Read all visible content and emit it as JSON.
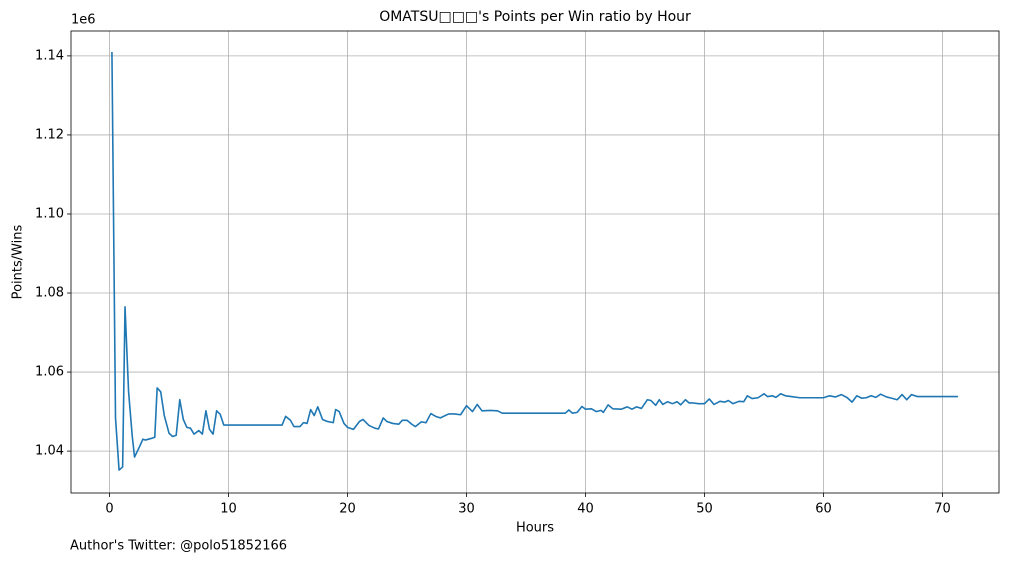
{
  "chart_data": {
    "type": "line",
    "title": "OMATSU□□□'s Points per Win ratio by Hour",
    "xlabel": "Hours",
    "ylabel": "Points/Wins",
    "y_offset_label": "1e6",
    "footer": "Author's Twitter: @polo51852166",
    "x": [
      0.2,
      0.5,
      0.8,
      1.1,
      1.3,
      1.6,
      1.9,
      2.1,
      2.5,
      2.8,
      3.0,
      3.5,
      3.8,
      4.0,
      4.3,
      4.6,
      5.0,
      5.3,
      5.6,
      5.9,
      6.2,
      6.5,
      6.8,
      7.1,
      7.5,
      7.8,
      8.1,
      8.4,
      8.7,
      9.0,
      9.3,
      9.6,
      14.5,
      14.8,
      15.2,
      15.5,
      16.0,
      16.3,
      16.6,
      16.9,
      17.2,
      17.5,
      17.9,
      18.3,
      18.8,
      19.0,
      19.3,
      19.7,
      20.0,
      20.5,
      21.0,
      21.3,
      21.8,
      22.3,
      22.6,
      23.0,
      23.3,
      23.8,
      24.3,
      24.6,
      25.0,
      25.4,
      25.7,
      26.2,
      26.6,
      27.0,
      27.4,
      27.8,
      28.5,
      29.0,
      29.5,
      30.0,
      30.5,
      30.9,
      31.3,
      32.0,
      32.6,
      33.0,
      38.3,
      38.6,
      38.9,
      39.3,
      39.7,
      40.0,
      40.5,
      40.9,
      41.3,
      41.5,
      41.9,
      42.3,
      43.0,
      43.5,
      43.9,
      44.3,
      44.7,
      45.2,
      45.5,
      45.9,
      46.2,
      46.5,
      46.9,
      47.3,
      47.7,
      48.0,
      48.4,
      48.7,
      49.0,
      49.5,
      50.0,
      50.4,
      50.8,
      51.3,
      51.7,
      52.0,
      52.4,
      52.9,
      53.3,
      53.6,
      54.0,
      54.5,
      55.0,
      55.3,
      55.7,
      56.0,
      56.4,
      56.8,
      57.3,
      58.0,
      60.0,
      60.5,
      61.0,
      61.5,
      62.0,
      62.4,
      62.8,
      63.2,
      63.6,
      64.0,
      64.4,
      64.8,
      65.3,
      65.7,
      66.2,
      66.6,
      67.0,
      67.4,
      67.9,
      71.3
    ],
    "series": [
      {
        "name": "Points/Wins",
        "color": "#1f77b4",
        "values": [
          1.141,
          1.0484,
          1.0352,
          1.036,
          1.0765,
          1.055,
          1.044,
          1.0385,
          1.041,
          1.043,
          1.0428,
          1.0432,
          1.0435,
          1.056,
          1.055,
          1.049,
          1.0445,
          1.0437,
          1.044,
          1.053,
          1.048,
          1.046,
          1.0458,
          1.0443,
          1.0452,
          1.0443,
          1.0502,
          1.0455,
          1.0443,
          1.0502,
          1.0493,
          1.0466,
          1.0466,
          1.0488,
          1.0478,
          1.0462,
          1.0462,
          1.0472,
          1.047,
          1.0505,
          1.049,
          1.0512,
          1.048,
          1.0475,
          1.0472,
          1.0505,
          1.05,
          1.047,
          1.046,
          1.0455,
          1.0475,
          1.048,
          1.0465,
          1.0458,
          1.0456,
          1.0484,
          1.0475,
          1.047,
          1.0468,
          1.0478,
          1.0478,
          1.0468,
          1.0462,
          1.0474,
          1.0472,
          1.0495,
          1.0488,
          1.0484,
          1.0494,
          1.0494,
          1.0492,
          1.0515,
          1.05,
          1.0518,
          1.0502,
          1.0503,
          1.0502,
          1.0496,
          1.0496,
          1.0504,
          1.0496,
          1.0498,
          1.0513,
          1.0506,
          1.0507,
          1.05,
          1.0503,
          1.0498,
          1.0517,
          1.0507,
          1.0506,
          1.0512,
          1.0506,
          1.0512,
          1.0508,
          1.053,
          1.0528,
          1.0516,
          1.053,
          1.0518,
          1.0525,
          1.052,
          1.0525,
          1.0517,
          1.053,
          1.0522,
          1.0522,
          1.052,
          1.052,
          1.0532,
          1.0518,
          1.0526,
          1.0524,
          1.0528,
          1.052,
          1.0526,
          1.0525,
          1.054,
          1.0533,
          1.0535,
          1.0545,
          1.0538,
          1.054,
          1.0536,
          1.0545,
          1.054,
          1.0538,
          1.0535,
          1.0535,
          1.054,
          1.0537,
          1.0543,
          1.0535,
          1.0524,
          1.054,
          1.0534,
          1.0535,
          1.054,
          1.0536,
          1.0544,
          1.0537,
          1.0534,
          1.053,
          1.0543,
          1.053,
          1.0543,
          1.0538,
          1.0538
        ]
      }
    ],
    "xlim": [
      -3.24,
      74.75
    ],
    "xticks": [
      0,
      10,
      20,
      30,
      40,
      50,
      60,
      70
    ],
    "ylim": [
      1.0294,
      1.1463
    ],
    "yticks": [
      1.04,
      1.06,
      1.08,
      {
        "value": 1.1,
        "label": "1.10"
      },
      1.12,
      1.14
    ],
    "grid": true
  }
}
